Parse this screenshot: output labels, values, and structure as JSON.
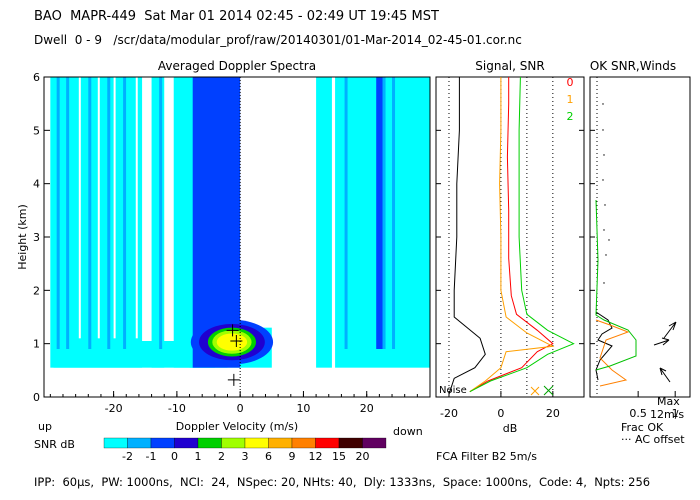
{
  "header": {
    "line1": "BAO  MAPR-449  Sat Mar 01 2014 02:45 - 02:49 UT 19:45 MST",
    "line2": "Dwell  0 - 9   /scr/data/modular_prof/raw/20140301/01-Mar-2014_02-45-01.cor.nc"
  },
  "chart_data": [
    {
      "type": "heatmap",
      "title": "Averaged Doppler Spectra",
      "xlabel": "Doppler Velocity (m/s)",
      "ylabel": "Height (km)",
      "xlim": [
        -31,
        30
      ],
      "ylim": [
        0,
        6
      ],
      "x_ticks": [
        -20,
        -10,
        0,
        10,
        20
      ],
      "y_ticks": [
        0,
        1,
        2,
        3,
        4,
        5,
        6
      ],
      "left_label": "up",
      "right_label": "down",
      "colorbar": {
        "label": "SNR dB",
        "ticks": [
          "-2",
          "-1",
          "0",
          "1",
          "2",
          "3",
          "6",
          "9",
          "12",
          "15",
          "20"
        ],
        "colors": [
          "#00ffff",
          "#00b0ff",
          "#0040ff",
          "#2000d0",
          "#00d000",
          "#a0ff00",
          "#ffff00",
          "#ffb000",
          "#ff8000",
          "#ff0000",
          "#400000",
          "#600060"
        ]
      },
      "peak_velocity_marks": [
        {
          "v": -1.2,
          "h": 1.25
        },
        {
          "v": -0.6,
          "h": 1.05
        },
        {
          "v": -1.0,
          "h": 0.32
        }
      ]
    },
    {
      "type": "line",
      "title": "Signal, SNR",
      "xlabel": "dB",
      "xlim": [
        -25,
        32
      ],
      "ylim": [
        0,
        6
      ],
      "x_ticks": [
        -20,
        0,
        20
      ],
      "noise_label": "Noise",
      "series": [
        {
          "name": "0",
          "color": "#ff0000",
          "points": [
            [
              -12,
              0.1
            ],
            [
              -5,
              0.3
            ],
            [
              8,
              0.55
            ],
            [
              14,
              0.85
            ],
            [
              20,
              1.0
            ],
            [
              14,
              1.25
            ],
            [
              6,
              1.55
            ],
            [
              4,
              1.9
            ],
            [
              3,
              2.6
            ],
            [
              3,
              3.5
            ],
            [
              2.5,
              4.5
            ],
            [
              3,
              5.5
            ],
            [
              3,
              6
            ]
          ]
        },
        {
          "name": "1",
          "color": "#ffa000",
          "points": [
            [
              -12,
              0.1
            ],
            [
              -6,
              0.3
            ],
            [
              0,
              0.55
            ],
            [
              2,
              0.85
            ],
            [
              20,
              0.95
            ],
            [
              10,
              1.2
            ],
            [
              2,
              1.5
            ],
            [
              0,
              2
            ],
            [
              0,
              3
            ],
            [
              -0.5,
              4
            ],
            [
              0,
              5
            ],
            [
              0,
              6
            ]
          ]
        },
        {
          "name": "2",
          "color": "#00d000",
          "points": [
            [
              -12,
              0.1
            ],
            [
              -4,
              0.3
            ],
            [
              10,
              0.55
            ],
            [
              18,
              0.8
            ],
            [
              28,
              1.0
            ],
            [
              18,
              1.25
            ],
            [
              10,
              1.55
            ],
            [
              8,
              2
            ],
            [
              7,
              3
            ],
            [
              7,
              4
            ],
            [
              7,
              5
            ],
            [
              7.5,
              6
            ]
          ]
        },
        {
          "name": "",
          "color": "#000000",
          "points": [
            [
              -20,
              0.05
            ],
            [
              -18,
              0.35
            ],
            [
              -10,
              0.55
            ],
            [
              -6,
              0.8
            ],
            [
              -8,
              1.1
            ],
            [
              -18,
              1.5
            ],
            [
              -18,
              2
            ],
            [
              -17,
              3
            ],
            [
              -17,
              4
            ],
            [
              -16,
              5
            ],
            [
              -16,
              6
            ]
          ]
        }
      ]
    },
    {
      "type": "line",
      "title": "OK SNR,Winds",
      "xlabel": "Frac OK",
      "x_sublabel": "··· AC offset",
      "xlim": [
        -0.15,
        1.2
      ],
      "ylim": [
        0,
        6
      ],
      "x_ticks": [
        0.5,
        1
      ],
      "wind_scale_label": "Max\n12m/s"
    }
  ],
  "footer": {
    "filter": "FCA Filter B2  5m/s",
    "params": "IPP:  60µs,  PW: 1000ns,  NCI:  24,  NSpec: 20, NHts: 40,  Dly: 1333ns,  Space: 1000ns,  Code: 4,  Npts: 256"
  }
}
